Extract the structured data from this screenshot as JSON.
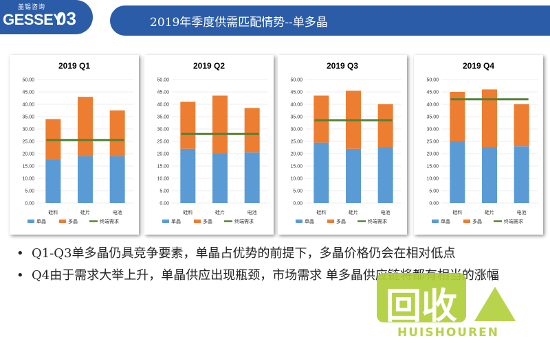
{
  "header": {
    "logo_subtitle": "盖锡咨询",
    "logo_main": "GESSEY",
    "slide_number": "03",
    "title": "2019年季度供需匹配情势--单多晶",
    "accent_color": "#2a5ca8"
  },
  "chart_data": [
    {
      "type": "bar",
      "title": "2019 Q1",
      "categories": [
        "硅料",
        "硅片",
        "电池"
      ],
      "series": [
        {
          "name": "单晶",
          "values": [
            17.5,
            19.0,
            19.0
          ],
          "color": "#5b9bd5"
        },
        {
          "name": "多晶",
          "values": [
            16.5,
            24.0,
            18.5
          ],
          "color": "#ed7d31"
        }
      ],
      "demand_line": {
        "name": "终端需求",
        "value": 25.5,
        "color": "#548235"
      },
      "ylim": [
        0,
        50
      ],
      "yticks": [
        "0.00",
        "5.00",
        "10.00",
        "15.00",
        "20.00",
        "25.00",
        "30.00",
        "35.00",
        "40.00",
        "45.00",
        "50.00"
      ],
      "stacked": true,
      "legend": "bottom"
    },
    {
      "type": "bar",
      "title": "2019 Q2",
      "categories": [
        "硅料",
        "硅片",
        "电池"
      ],
      "series": [
        {
          "name": "单晶",
          "values": [
            22.0,
            20.0,
            20.5
          ],
          "color": "#5b9bd5"
        },
        {
          "name": "多晶",
          "values": [
            19.0,
            23.5,
            18.0
          ],
          "color": "#ed7d31"
        }
      ],
      "demand_line": {
        "name": "终端需求",
        "value": 28.0,
        "color": "#548235"
      },
      "ylim": [
        0,
        50
      ],
      "yticks": [
        "0.00",
        "5.00",
        "10.00",
        "15.00",
        "20.00",
        "25.00",
        "30.00",
        "35.00",
        "40.00",
        "45.00",
        "50.00"
      ],
      "stacked": true,
      "legend": "bottom"
    },
    {
      "type": "bar",
      "title": "2019 Q3",
      "categories": [
        "硅料",
        "硅片",
        "电池"
      ],
      "series": [
        {
          "name": "单晶",
          "values": [
            24.5,
            22.0,
            22.5
          ],
          "color": "#5b9bd5"
        },
        {
          "name": "多晶",
          "values": [
            19.0,
            23.5,
            17.5
          ],
          "color": "#ed7d31"
        }
      ],
      "demand_line": {
        "name": "终端需求",
        "value": 33.5,
        "color": "#548235"
      },
      "ylim": [
        0,
        50
      ],
      "yticks": [
        "0.00",
        "5.00",
        "10.00",
        "15.00",
        "20.00",
        "25.00",
        "30.00",
        "35.00",
        "40.00",
        "45.00",
        "50.00"
      ],
      "stacked": true,
      "legend": "bottom"
    },
    {
      "type": "bar",
      "title": "2019 Q4",
      "categories": [
        "硅料",
        "硅片",
        "电池"
      ],
      "series": [
        {
          "name": "单晶",
          "values": [
            25.0,
            22.5,
            23.0
          ],
          "color": "#5b9bd5"
        },
        {
          "name": "多晶",
          "values": [
            20.0,
            23.5,
            17.0
          ],
          "color": "#ed7d31"
        }
      ],
      "demand_line": {
        "name": "终端需求",
        "value": 42.0,
        "color": "#548235"
      },
      "ylim": [
        0,
        50
      ],
      "yticks": [
        "0.00",
        "5.00",
        "10.00",
        "15.00",
        "20.00",
        "25.00",
        "30.00",
        "35.00",
        "40.00",
        "45.00",
        "50.00"
      ],
      "stacked": true,
      "legend": "bottom"
    }
  ],
  "bullets": [
    "Q1-Q3单多晶仍具竞争要素，单晶占优势的前提下，多晶价格仍会在相对低点",
    "Q4由于需求大举上升，单晶供应出现瓶颈，市场需求 单多晶供应链将都有相当的涨幅"
  ],
  "bullet_symbol": "•",
  "watermark": {
    "main": "回收",
    "sub": "HUISHOUREN",
    "color": "#b0cf3a"
  }
}
